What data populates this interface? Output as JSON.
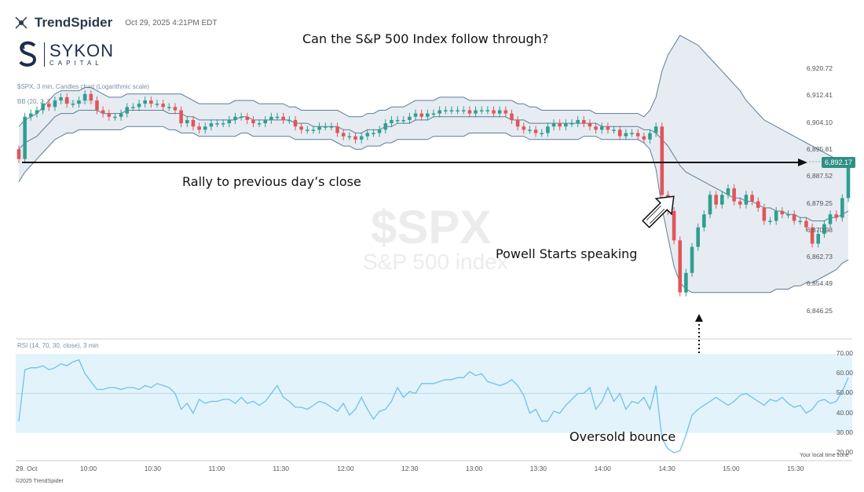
{
  "header": {
    "brand": "TrendSpider",
    "timestamp": "Oct 29, 2025 4:21PM EDT"
  },
  "sykon": {
    "name": "SYKON",
    "sub": "CAPITAL"
  },
  "legend": {
    "symbol_line": "$SPX, 3 min, Candles chart (Logarithmic scale)",
    "bb_line": "BB (20, 2, 2, 0, close), 3 min",
    "rsi_line": "RSI (14, 70, 30, close), 3 min"
  },
  "title": "Can the S&P 500 Index follow through?",
  "annotations": {
    "rally": "Rally to previous day’s close",
    "powell": "Powell Starts speaking",
    "oversold": "Oversold bounce"
  },
  "watermark": {
    "symbol": "$SPX",
    "name": "S&P 500 index"
  },
  "footer": {
    "copyright": "©2025 TrendSpider",
    "tz": "Your local time zone"
  },
  "current_price": "6,892.17",
  "chart_data": [
    {
      "type": "candlestick",
      "title": "Can the S&P 500 Index follow through?",
      "scale": "log",
      "y_ticks": [
        "6,920.72",
        "6,912.41",
        "6,904.10",
        "6,895.81",
        "6,887.52",
        "6,879.25",
        "6,870.98",
        "6,862.73",
        "6,854.49",
        "6,846.25"
      ],
      "y_tick_values": [
        6920.72,
        6912.41,
        6904.1,
        6895.81,
        6887.52,
        6879.25,
        6870.98,
        6862.73,
        6854.49,
        6846.25
      ],
      "ylim": [
        6843,
        6925
      ],
      "x_ticks": [
        "29. Oct",
        "10:00",
        "10:30",
        "11:00",
        "11:30",
        "12:00",
        "12:30",
        "13:00",
        "13:30",
        "14:00",
        "14:30",
        "15:00",
        "15:30"
      ],
      "x_tick_times": [
        9.5,
        10.0,
        10.5,
        11.0,
        11.5,
        12.0,
        12.5,
        13.0,
        13.5,
        14.0,
        14.5,
        15.0,
        15.5
      ],
      "previous_close": 6892.17,
      "series_close": [
        6893,
        6906,
        6907,
        6908,
        6910,
        6909,
        6911,
        6912,
        6910,
        6910,
        6911,
        6913,
        6911,
        6908,
        6907,
        6906,
        6906,
        6907,
        6909,
        6909,
        6910,
        6911,
        6910,
        6910,
        6909,
        6909,
        6908,
        6904,
        6905,
        6903,
        6902,
        6903,
        6904,
        6904,
        6904,
        6905,
        6906,
        6906,
        6905,
        6904,
        6904,
        6905,
        6906,
        6906,
        6905,
        6905,
        6903,
        6902,
        6902,
        6902,
        6903,
        6903,
        6903,
        6901,
        6900,
        6900,
        6899,
        6900,
        6901,
        6901,
        6902,
        6904,
        6905,
        6905,
        6905,
        6906,
        6907,
        6906,
        6907,
        6907,
        6908,
        6908,
        6908,
        6908,
        6908,
        6907,
        6908,
        6908,
        6908,
        6907,
        6908,
        6907,
        6905,
        6903,
        6902,
        6902,
        6901,
        6901,
        6903,
        6904,
        6903,
        6904,
        6904,
        6905,
        6904,
        6903,
        6902,
        6903,
        6902,
        6902,
        6900,
        6901,
        6901,
        6900,
        6899,
        6901,
        6903,
        6882,
        6877,
        6868,
        6852,
        6858,
        6866,
        6872,
        6876,
        6882,
        6879,
        6882,
        6884,
        6880,
        6879,
        6882,
        6880,
        6878,
        6874,
        6874,
        6877,
        6876,
        6876,
        6874,
        6874,
        6872,
        6867,
        6870,
        6873,
        6876,
        6875,
        6881,
        6892
      ],
      "rsi": {
        "levels": [
          70,
          30
        ],
        "y_ticks": [
          "70.00",
          "60.00",
          "50.00",
          "40.00",
          "30.00",
          "20.00"
        ],
        "values": [
          36,
          62,
          63,
          63,
          64,
          62,
          63,
          65,
          64,
          66,
          67,
          60,
          56,
          52,
          52,
          53,
          53,
          52,
          53,
          53,
          52,
          54,
          53,
          55,
          54,
          53,
          50,
          42,
          45,
          40,
          47,
          45,
          46,
          46,
          47,
          47,
          45,
          48,
          45,
          46,
          44,
          46,
          50,
          54,
          48,
          46,
          43,
          43,
          42,
          44,
          46,
          45,
          43,
          41,
          45,
          39,
          42,
          48,
          42,
          37,
          41,
          42,
          46,
          53,
          48,
          51,
          50,
          55,
          55,
          55,
          56,
          57,
          57,
          58,
          58,
          61,
          59,
          60,
          56,
          55,
          54,
          55,
          57,
          54,
          49,
          40,
          42,
          36,
          36,
          41,
          40,
          44,
          47,
          50,
          50,
          53,
          42,
          46,
          53,
          46,
          50,
          42,
          46,
          45,
          48,
          42,
          54,
          27,
          22,
          20,
          21,
          29,
          39,
          42,
          44,
          46,
          48,
          46,
          44,
          46,
          49,
          50,
          48,
          46,
          44,
          47,
          46,
          48,
          45,
          43,
          44,
          40,
          42,
          46,
          47,
          45,
          46,
          51,
          58
        ]
      },
      "bands": {
        "upper": [
          6903,
          6905,
          6906,
          6907,
          6909,
          6911,
          6913,
          6914,
          6914,
          6914,
          6914,
          6915,
          6915,
          6914,
          6913,
          6912,
          6912,
          6912,
          6913,
          6913,
          6913,
          6913,
          6913,
          6913,
          6913,
          6913,
          6913,
          6913,
          6912,
          6911,
          6910,
          6910,
          6910,
          6910,
          6910,
          6910,
          6911,
          6911,
          6911,
          6911,
          6910,
          6910,
          6910,
          6910,
          6910,
          6909,
          6909,
          6908,
          6908,
          6908,
          6908,
          6908,
          6908,
          6908,
          6907,
          6906,
          6906,
          6906,
          6907,
          6907,
          6908,
          6908,
          6909,
          6909,
          6909,
          6910,
          6911,
          6911,
          6911,
          6911,
          6912,
          6912,
          6912,
          6912,
          6912,
          6911,
          6911,
          6911,
          6911,
          6911,
          6911,
          6911,
          6911,
          6910,
          6910,
          6909,
          6909,
          6908,
          6908,
          6908,
          6908,
          6908,
          6908,
          6908,
          6908,
          6908,
          6907,
          6907,
          6907,
          6907,
          6907,
          6907,
          6907,
          6907,
          6906,
          6908,
          6912,
          6920,
          6925,
          6928,
          6931,
          6930,
          6929,
          6928,
          6926,
          6924,
          6922,
          6920,
          6918,
          6916,
          6914,
          6911,
          6909,
          6907,
          6905,
          6904,
          6903,
          6902,
          6901,
          6900,
          6899,
          6898,
          6897,
          6896,
          6895,
          6894,
          6893,
          6893,
          6893
        ],
        "middle": [
          6896,
          6898,
          6899,
          6900,
          6902,
          6904,
          6906,
          6907,
          6907,
          6907,
          6908,
          6908,
          6908,
          6908,
          6907,
          6907,
          6907,
          6907,
          6908,
          6908,
          6908,
          6908,
          6908,
          6908,
          6908,
          6907,
          6907,
          6907,
          6906,
          6906,
          6905,
          6905,
          6905,
          6905,
          6905,
          6905,
          6905,
          6906,
          6906,
          6905,
          6905,
          6905,
          6905,
          6905,
          6905,
          6905,
          6904,
          6904,
          6904,
          6903,
          6903,
          6903,
          6903,
          6903,
          6902,
          6902,
          6901,
          6901,
          6902,
          6902,
          6902,
          6903,
          6903,
          6904,
          6904,
          6904,
          6905,
          6905,
          6905,
          6906,
          6906,
          6906,
          6906,
          6906,
          6906,
          6906,
          6906,
          6906,
          6906,
          6906,
          6906,
          6906,
          6905,
          6905,
          6905,
          6904,
          6904,
          6904,
          6904,
          6904,
          6904,
          6904,
          6904,
          6904,
          6904,
          6904,
          6904,
          6903,
          6903,
          6903,
          6903,
          6903,
          6903,
          6903,
          6902,
          6902,
          6901,
          6899,
          6897,
          6894,
          6891,
          6889,
          6888,
          6887,
          6886,
          6885,
          6884,
          6883,
          6882,
          6881,
          6881,
          6880,
          6880,
          6879,
          6878,
          6878,
          6877,
          6877,
          6876,
          6876,
          6875,
          6875,
          6874,
          6874,
          6874,
          6875,
          6875,
          6876,
          6877
        ],
        "lower": [
          6886,
          6889,
          6891,
          6893,
          6895,
          6897,
          6899,
          6900,
          6901,
          6901,
          6902,
          6902,
          6902,
          6902,
          6902,
          6902,
          6902,
          6902,
          6903,
          6903,
          6903,
          6903,
          6903,
          6903,
          6903,
          6902,
          6902,
          6901,
          6901,
          6901,
          6900,
          6900,
          6900,
          6900,
          6900,
          6900,
          6900,
          6901,
          6901,
          6900,
          6900,
          6900,
          6900,
          6900,
          6900,
          6900,
          6899,
          6899,
          6899,
          6899,
          6899,
          6899,
          6899,
          6898,
          6897,
          6897,
          6896,
          6896,
          6897,
          6897,
          6897,
          6898,
          6898,
          6899,
          6899,
          6899,
          6899,
          6899,
          6899,
          6900,
          6900,
          6900,
          6900,
          6900,
          6900,
          6901,
          6901,
          6901,
          6901,
          6901,
          6901,
          6901,
          6900,
          6900,
          6900,
          6899,
          6899,
          6899,
          6899,
          6899,
          6899,
          6899,
          6899,
          6899,
          6900,
          6900,
          6900,
          6899,
          6899,
          6899,
          6899,
          6899,
          6899,
          6899,
          6898,
          6896,
          6890,
          6878,
          6869,
          6860,
          6855,
          6853,
          6852,
          6852,
          6852,
          6852,
          6852,
          6852,
          6852,
          6852,
          6852,
          6852,
          6852,
          6852,
          6852,
          6852,
          6853,
          6853,
          6853,
          6854,
          6854,
          6855,
          6855,
          6856,
          6857,
          6858,
          6859,
          6861,
          6862
        ]
      }
    }
  ]
}
